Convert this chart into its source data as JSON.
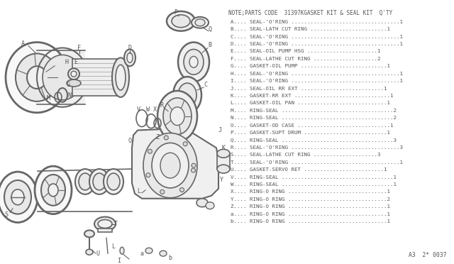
{
  "title": "NOTE;PARTS CODE  31397KGASKET KIT & SEAL KIT  Q'TY",
  "parts": [
    {
      "code": "A",
      "desc": "SEAL-'O'RING",
      "dots": 34,
      "qty": "1"
    },
    {
      "code": "B",
      "desc": "SEAL-LATH CUT RING",
      "dots": 24,
      "qty": "1"
    },
    {
      "code": "C",
      "desc": "SEAL-'O'RING",
      "dots": 34,
      "qty": "1"
    },
    {
      "code": "D",
      "desc": "SEAL-'O'RING",
      "dots": 34,
      "qty": "1"
    },
    {
      "code": "E",
      "desc": "SEAL-OIL PUMP HSG",
      "dots": 22,
      "qty": "1"
    },
    {
      "code": "F",
      "desc": "SEAL-LATHE CUT RING",
      "dots": 20,
      "qty": "2"
    },
    {
      "code": "G",
      "desc": "GASKET-OIL PUMP",
      "dots": 27,
      "qty": "1"
    },
    {
      "code": "H",
      "desc": "SEAL-'O'RING",
      "dots": 34,
      "qty": "1"
    },
    {
      "code": "I",
      "desc": "SEAL-'O'RING",
      "dots": 34,
      "qty": "1"
    },
    {
      "code": "J",
      "desc": "SEAL-OIL RR EXT",
      "dots": 26,
      "qty": "1"
    },
    {
      "code": "K",
      "desc": "GASKET-RR EXT",
      "dots": 30,
      "qty": "1"
    },
    {
      "code": "L",
      "desc": "GASKET-OIL PAN",
      "dots": 28,
      "qty": "1"
    },
    {
      "code": "M",
      "desc": "RING-SEAL",
      "dots": 35,
      "qty": "2"
    },
    {
      "code": "N",
      "desc": "RING-SEAL",
      "dots": 35,
      "qty": "2"
    },
    {
      "code": "O",
      "desc": "GASKET-OD CASE",
      "dots": 29,
      "qty": "1"
    },
    {
      "code": "P",
      "desc": "GASKET-SUPT DRUM",
      "dots": 26,
      "qty": "1"
    },
    {
      "code": "Q",
      "desc": "RING-SEAL",
      "dots": 35,
      "qty": "3"
    },
    {
      "code": "R",
      "desc": "SEAL-'O'RING",
      "dots": 34,
      "qty": "3"
    },
    {
      "code": "S",
      "desc": "SEAL-LATHE CUT RING",
      "dots": 20,
      "qty": "3"
    },
    {
      "code": "T",
      "desc": "SEAL-'O'RING",
      "dots": 34,
      "qty": "1"
    },
    {
      "code": "U",
      "desc": "GASKET-SERVO RET",
      "dots": 25,
      "qty": "1"
    },
    {
      "code": "V",
      "desc": "RING-SEAL",
      "dots": 35,
      "qty": "1"
    },
    {
      "code": "W",
      "desc": "RING-SEAL",
      "dots": 35,
      "qty": "1"
    },
    {
      "code": "X",
      "desc": "RING-O RING",
      "dots": 31,
      "qty": "1"
    },
    {
      "code": "Y",
      "desc": "RING-O RING",
      "dots": 31,
      "qty": "2"
    },
    {
      "code": "Z",
      "desc": "RING-O RING",
      "dots": 31,
      "qty": "1"
    },
    {
      "code": "a",
      "desc": "RING-O RING",
      "dots": 31,
      "qty": "1"
    },
    {
      "code": "b",
      "desc": "RING-O RING",
      "dots": 31,
      "qty": "1"
    }
  ],
  "footer": "A3  2* 0037",
  "bg_color": "#ffffff",
  "text_color": "#555555",
  "diagram_color": "#666666",
  "title_fontsize": 5.5,
  "parts_fontsize": 5.4,
  "footer_fontsize": 5.8,
  "label_fontsize": 6.0
}
